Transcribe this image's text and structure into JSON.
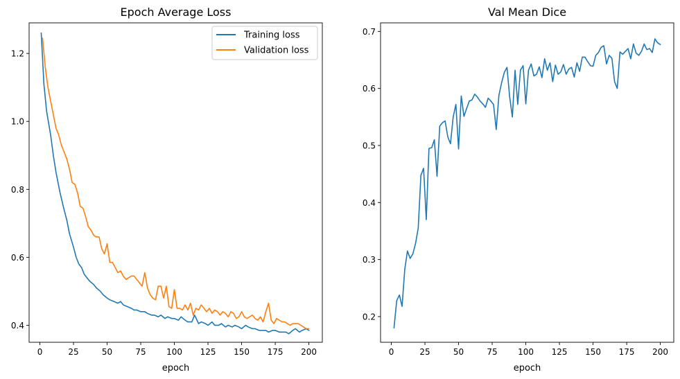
{
  "chart_data": [
    {
      "type": "line",
      "title": "Epoch Average Loss",
      "xlabel": "epoch",
      "ylabel": "",
      "xlim": [
        -8,
        210
      ],
      "ylim": [
        0.35,
        1.29
      ],
      "xticks": [
        0,
        25,
        50,
        75,
        100,
        125,
        150,
        175,
        200
      ],
      "yticks": [
        0.4,
        0.6,
        0.8,
        1.0,
        1.2
      ],
      "ytick_labels": [
        "0.4",
        "0.6",
        "0.8",
        "1.0",
        "1.2"
      ],
      "grid": false,
      "legend": "top-right",
      "series": [
        {
          "name": "Training loss",
          "color": "#1f77b4",
          "x": [
            1,
            3,
            5,
            8,
            10,
            12,
            15,
            18,
            20,
            22,
            25,
            27,
            29,
            31,
            33,
            35,
            37,
            40,
            42,
            45,
            47,
            50,
            52,
            55,
            58,
            60,
            62,
            65,
            68,
            70,
            72,
            75,
            78,
            80,
            83,
            85,
            88,
            90,
            93,
            95,
            98,
            100,
            103,
            105,
            108,
            110,
            113,
            115,
            118,
            120,
            123,
            125,
            128,
            130,
            133,
            135,
            138,
            140,
            143,
            145,
            148,
            150,
            153,
            155,
            158,
            160,
            163,
            165,
            168,
            170,
            173,
            175,
            178,
            180,
            183,
            185,
            188,
            190,
            193,
            195,
            198,
            200
          ],
          "y": [
            1.26,
            1.11,
            1.03,
            0.96,
            0.9,
            0.85,
            0.79,
            0.74,
            0.71,
            0.67,
            0.63,
            0.6,
            0.58,
            0.57,
            0.55,
            0.54,
            0.53,
            0.52,
            0.51,
            0.5,
            0.49,
            0.48,
            0.475,
            0.47,
            0.465,
            0.47,
            0.46,
            0.455,
            0.45,
            0.445,
            0.445,
            0.44,
            0.44,
            0.435,
            0.43,
            0.43,
            0.425,
            0.43,
            0.42,
            0.425,
            0.42,
            0.42,
            0.415,
            0.425,
            0.415,
            0.41,
            0.41,
            0.43,
            0.405,
            0.41,
            0.405,
            0.4,
            0.41,
            0.4,
            0.4,
            0.405,
            0.395,
            0.4,
            0.395,
            0.4,
            0.395,
            0.39,
            0.4,
            0.395,
            0.39,
            0.39,
            0.385,
            0.385,
            0.385,
            0.38,
            0.385,
            0.385,
            0.38,
            0.38,
            0.38,
            0.375,
            0.385,
            0.39,
            0.38,
            0.385,
            0.39,
            0.385
          ]
        },
        {
          "name": "Validation loss",
          "color": "#ff7f0e",
          "x": [
            2,
            4,
            6,
            8,
            10,
            12,
            14,
            16,
            18,
            20,
            22,
            24,
            26,
            28,
            30,
            32,
            34,
            36,
            38,
            40,
            42,
            44,
            46,
            48,
            50,
            52,
            54,
            56,
            58,
            60,
            62,
            64,
            66,
            68,
            70,
            72,
            74,
            76,
            78,
            80,
            82,
            84,
            86,
            88,
            90,
            92,
            94,
            96,
            98,
            100,
            102,
            104,
            106,
            108,
            110,
            112,
            114,
            116,
            118,
            120,
            122,
            124,
            126,
            128,
            130,
            132,
            134,
            136,
            138,
            140,
            142,
            144,
            146,
            148,
            150,
            152,
            154,
            156,
            158,
            160,
            162,
            164,
            166,
            168,
            170,
            172,
            174,
            176,
            178,
            180,
            182,
            184,
            186,
            188,
            190,
            192,
            194,
            196,
            198,
            200
          ],
          "y": [
            1.245,
            1.16,
            1.1,
            1.06,
            1.02,
            0.98,
            0.96,
            0.93,
            0.91,
            0.89,
            0.86,
            0.82,
            0.815,
            0.79,
            0.75,
            0.745,
            0.72,
            0.69,
            0.68,
            0.665,
            0.66,
            0.66,
            0.625,
            0.61,
            0.64,
            0.585,
            0.585,
            0.57,
            0.555,
            0.56,
            0.545,
            0.535,
            0.54,
            0.545,
            0.545,
            0.535,
            0.525,
            0.515,
            0.555,
            0.51,
            0.49,
            0.48,
            0.475,
            0.515,
            0.515,
            0.48,
            0.515,
            0.455,
            0.45,
            0.505,
            0.45,
            0.45,
            0.445,
            0.46,
            0.445,
            0.465,
            0.43,
            0.45,
            0.445,
            0.46,
            0.45,
            0.44,
            0.45,
            0.435,
            0.445,
            0.44,
            0.43,
            0.44,
            0.435,
            0.425,
            0.44,
            0.435,
            0.42,
            0.425,
            0.44,
            0.425,
            0.42,
            0.425,
            0.43,
            0.42,
            0.415,
            0.425,
            0.41,
            0.44,
            0.465,
            0.415,
            0.405,
            0.42,
            0.415,
            0.41,
            0.41,
            0.405,
            0.4,
            0.405,
            0.405,
            0.405,
            0.4,
            0.395,
            0.39,
            0.39
          ]
        }
      ]
    },
    {
      "type": "line",
      "title": "Val Mean Dice",
      "xlabel": "epoch",
      "ylabel": "",
      "xlim": [
        -8,
        210
      ],
      "ylim": [
        0.155,
        0.715
      ],
      "xticks": [
        0,
        25,
        50,
        75,
        100,
        125,
        150,
        175,
        200
      ],
      "yticks": [
        0.2,
        0.3,
        0.4,
        0.5,
        0.6,
        0.7
      ],
      "ytick_labels": [
        "0.2",
        "0.3",
        "0.4",
        "0.5",
        "0.6",
        "0.7"
      ],
      "grid": false,
      "legend": "none",
      "series": [
        {
          "name": "",
          "color": "#1f77b4",
          "x": [
            2,
            4,
            6,
            8,
            10,
            12,
            14,
            16,
            18,
            20,
            22,
            24,
            26,
            28,
            30,
            32,
            34,
            36,
            38,
            40,
            42,
            44,
            46,
            48,
            50,
            52,
            54,
            56,
            58,
            60,
            62,
            64,
            66,
            68,
            70,
            72,
            74,
            76,
            78,
            80,
            82,
            84,
            86,
            88,
            90,
            92,
            94,
            96,
            98,
            100,
            102,
            104,
            106,
            108,
            110,
            112,
            114,
            116,
            118,
            120,
            122,
            124,
            126,
            128,
            130,
            132,
            134,
            136,
            138,
            140,
            142,
            144,
            146,
            148,
            150,
            152,
            154,
            156,
            158,
            160,
            162,
            164,
            166,
            168,
            170,
            172,
            174,
            176,
            178,
            180,
            182,
            184,
            186,
            188,
            190,
            192,
            194,
            196,
            198,
            200
          ],
          "y": [
            0.18,
            0.228,
            0.238,
            0.218,
            0.283,
            0.315,
            0.302,
            0.31,
            0.328,
            0.355,
            0.448,
            0.46,
            0.37,
            0.495,
            0.496,
            0.51,
            0.446,
            0.534,
            0.54,
            0.543,
            0.515,
            0.503,
            0.55,
            0.572,
            0.494,
            0.587,
            0.551,
            0.565,
            0.578,
            0.58,
            0.59,
            0.585,
            0.578,
            0.573,
            0.567,
            0.583,
            0.578,
            0.572,
            0.528,
            0.588,
            0.61,
            0.628,
            0.637,
            0.585,
            0.55,
            0.632,
            0.572,
            0.632,
            0.64,
            0.573,
            0.632,
            0.643,
            0.622,
            0.625,
            0.638,
            0.619,
            0.652,
            0.632,
            0.645,
            0.612,
            0.641,
            0.625,
            0.629,
            0.642,
            0.625,
            0.634,
            0.637,
            0.62,
            0.645,
            0.63,
            0.655,
            0.655,
            0.647,
            0.64,
            0.639,
            0.658,
            0.663,
            0.672,
            0.675,
            0.643,
            0.658,
            0.653,
            0.612,
            0.6,
            0.664,
            0.66,
            0.665,
            0.67,
            0.652,
            0.678,
            0.662,
            0.658,
            0.665,
            0.678,
            0.668,
            0.67,
            0.663,
            0.687,
            0.68,
            0.677
          ]
        }
      ]
    }
  ]
}
